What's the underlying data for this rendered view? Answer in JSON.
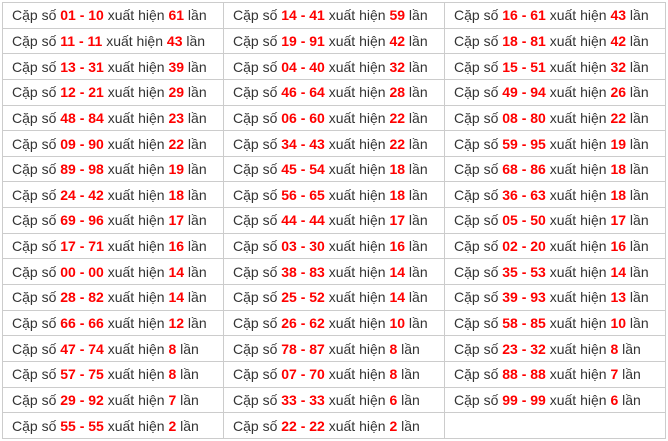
{
  "colors": {
    "highlight_red": "#ff0000",
    "text": "#333333",
    "border": "#cccccc",
    "background": "#ffffff"
  },
  "table": {
    "row_count": 17,
    "labels": {
      "prefix": "Cặp số",
      "appears": "xuất hiện",
      "times": "lần"
    },
    "columns": [
      {
        "cells": [
          {
            "pair": "01 - 10",
            "count": "61"
          },
          {
            "pair": "11 - 11",
            "count": "43"
          },
          {
            "pair": "13 - 31",
            "count": "39"
          },
          {
            "pair": "12 - 21",
            "count": "29"
          },
          {
            "pair": "48 - 84",
            "count": "23"
          },
          {
            "pair": "09 - 90",
            "count": "22"
          },
          {
            "pair": "89 - 98",
            "count": "19"
          },
          {
            "pair": "24 - 42",
            "count": "18"
          },
          {
            "pair": "69 - 96",
            "count": "17"
          },
          {
            "pair": "17 - 71",
            "count": "16"
          },
          {
            "pair": "00 - 00",
            "count": "14"
          },
          {
            "pair": "28 - 82",
            "count": "14"
          },
          {
            "pair": "66 - 66",
            "count": "12"
          },
          {
            "pair": "47 - 74",
            "count": "8"
          },
          {
            "pair": "57 - 75",
            "count": "8"
          },
          {
            "pair": "29 - 92",
            "count": "7"
          },
          {
            "pair": "55 - 55",
            "count": "2"
          }
        ]
      },
      {
        "cells": [
          {
            "pair": "14 - 41",
            "count": "59"
          },
          {
            "pair": "19 - 91",
            "count": "42"
          },
          {
            "pair": "04 - 40",
            "count": "32"
          },
          {
            "pair": "46 - 64",
            "count": "28"
          },
          {
            "pair": "06 - 60",
            "count": "22"
          },
          {
            "pair": "34 - 43",
            "count": "22"
          },
          {
            "pair": "45 - 54",
            "count": "18"
          },
          {
            "pair": "56 - 65",
            "count": "18"
          },
          {
            "pair": "44 - 44",
            "count": "17"
          },
          {
            "pair": "03 - 30",
            "count": "16"
          },
          {
            "pair": "38 - 83",
            "count": "14"
          },
          {
            "pair": "25 - 52",
            "count": "14"
          },
          {
            "pair": "26 - 62",
            "count": "10"
          },
          {
            "pair": "78 - 87",
            "count": "8"
          },
          {
            "pair": "07 - 70",
            "count": "8"
          },
          {
            "pair": "33 - 33",
            "count": "6"
          },
          {
            "pair": "22 - 22",
            "count": "2"
          }
        ]
      },
      {
        "cells": [
          {
            "pair": "16 - 61",
            "count": "43"
          },
          {
            "pair": "18 - 81",
            "count": "42"
          },
          {
            "pair": "15 - 51",
            "count": "32"
          },
          {
            "pair": "49 - 94",
            "count": "26"
          },
          {
            "pair": "08 - 80",
            "count": "22"
          },
          {
            "pair": "59 - 95",
            "count": "19"
          },
          {
            "pair": "68 - 86",
            "count": "18"
          },
          {
            "pair": "36 - 63",
            "count": "18"
          },
          {
            "pair": "05 - 50",
            "count": "17"
          },
          {
            "pair": "02 - 20",
            "count": "16"
          },
          {
            "pair": "35 - 53",
            "count": "14"
          },
          {
            "pair": "39 - 93",
            "count": "13"
          },
          {
            "pair": "58 - 85",
            "count": "10"
          },
          {
            "pair": "23 - 32",
            "count": "8"
          },
          {
            "pair": "88 - 88",
            "count": "7"
          },
          {
            "pair": "99 - 99",
            "count": "6"
          },
          null
        ]
      }
    ]
  }
}
